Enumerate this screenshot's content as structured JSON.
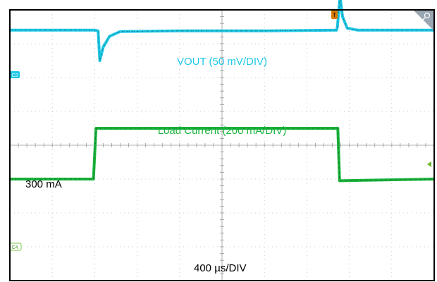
{
  "chart_data": {
    "type": "line",
    "title": "",
    "xlabel": "400 µs/DIV",
    "ylabel": "",
    "grid": true,
    "x_divisions": 10,
    "y_divisions": 8,
    "xlim": [
      0,
      10
    ],
    "ylim": [
      0,
      8
    ],
    "series": [
      {
        "name": "VOUT (50 mV/DIV)",
        "channel": "C2",
        "color": "#1ec8e6",
        "x": [
          0,
          2.0,
          2.08,
          2.12,
          2.2,
          2.35,
          2.6,
          4.0,
          6.0,
          7.7,
          7.72,
          7.78,
          7.84,
          7.95,
          8.2,
          10.0
        ],
        "y": [
          7.4,
          7.4,
          7.38,
          6.5,
          6.9,
          7.22,
          7.36,
          7.38,
          7.38,
          7.4,
          7.5,
          8.4,
          7.8,
          7.46,
          7.4,
          7.4
        ]
      },
      {
        "name": "Load Current (200 mA/DIV)",
        "channel": "C4",
        "color": "#19b43c",
        "x": [
          0,
          1.97,
          2.03,
          7.73,
          7.77,
          10.0
        ],
        "y": [
          3.0,
          3.0,
          4.5,
          4.5,
          2.95,
          3.0
        ]
      }
    ],
    "annotations": {
      "level_label": "300 mA",
      "vout_label": "VOUT (50 mV/DIV)",
      "current_label": "Load Current (200 mA/DIV)",
      "trigger_marker": "T",
      "c2_tag": "C2",
      "c4_tag": "C4"
    }
  }
}
